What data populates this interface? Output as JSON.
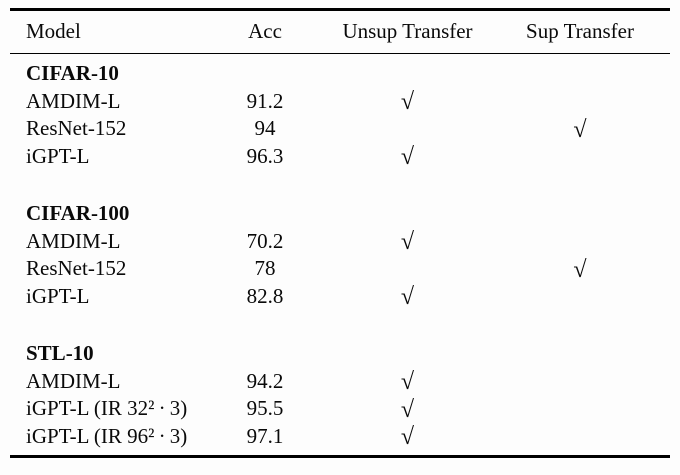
{
  "colors": {
    "background": "#fdfdfd",
    "text": "#0a0a0a",
    "rule": "#000000"
  },
  "table": {
    "columns": [
      "Model",
      "Acc",
      "Unsup Transfer",
      "Sup Transfer"
    ],
    "check_symbol": "√",
    "sections": [
      {
        "title": "CIFAR-10",
        "rows": [
          {
            "model": "AMDIM-L",
            "acc": "91.2",
            "unsup": true,
            "sup": false
          },
          {
            "model": "ResNet-152",
            "acc": "94",
            "unsup": false,
            "sup": true
          },
          {
            "model": "iGPT-L",
            "acc": "96.3",
            "unsup": true,
            "sup": false
          }
        ]
      },
      {
        "title": "CIFAR-100",
        "rows": [
          {
            "model": "AMDIM-L",
            "acc": "70.2",
            "unsup": true,
            "sup": false
          },
          {
            "model": "ResNet-152",
            "acc": "78",
            "unsup": false,
            "sup": true
          },
          {
            "model": "iGPT-L",
            "acc": "82.8",
            "unsup": true,
            "sup": false
          }
        ]
      },
      {
        "title": "STL-10",
        "rows": [
          {
            "model": "AMDIM-L",
            "acc": "94.2",
            "unsup": true,
            "sup": false
          },
          {
            "model": "iGPT-L (IR 32² · 3)",
            "acc": "95.5",
            "unsup": true,
            "sup": false
          },
          {
            "model": "iGPT-L (IR 96² · 3)",
            "acc": "97.1",
            "unsup": true,
            "sup": false
          }
        ]
      }
    ]
  }
}
